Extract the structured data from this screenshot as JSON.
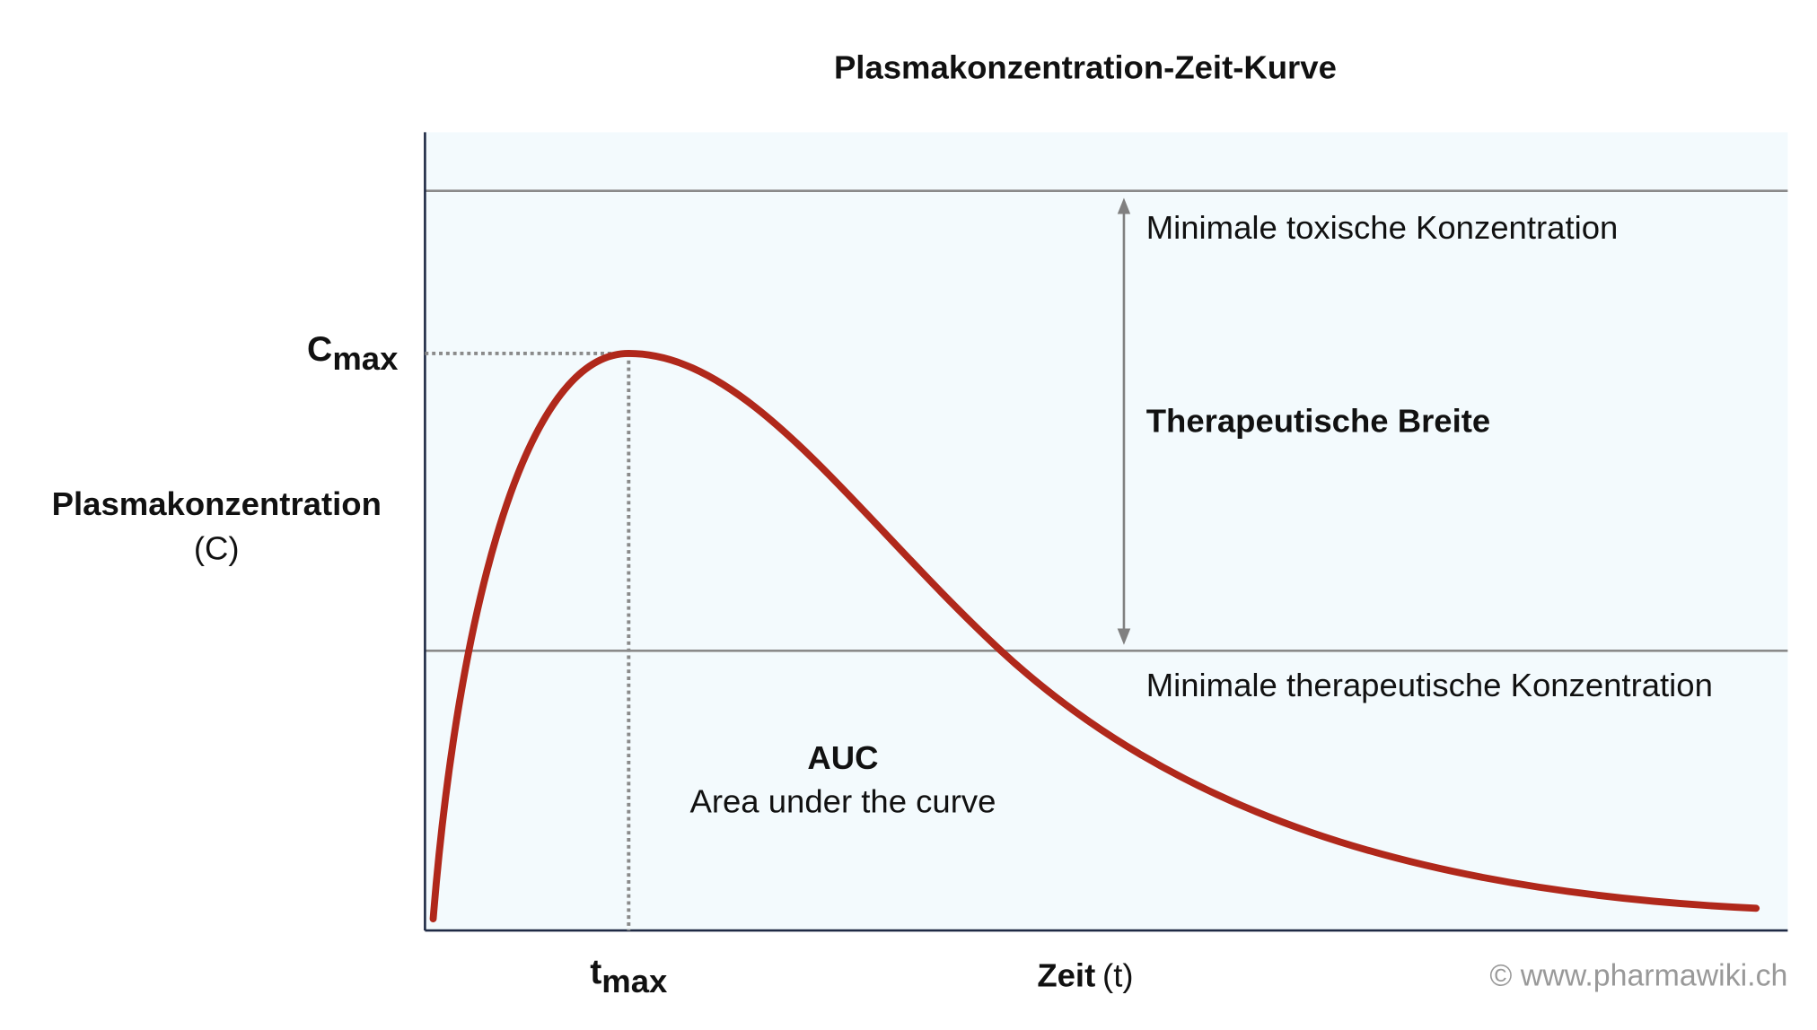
{
  "title": "Plasmakonzentration-Zeit-Kurve",
  "y_axis": {
    "label": "Plasmakonzentration",
    "symbol": "(C)"
  },
  "x_axis": {
    "label": "Zeit",
    "symbol": "(t)"
  },
  "cmax": {
    "symbol": "C",
    "subscript": "max"
  },
  "tmax": {
    "symbol": "t",
    "subscript": "max"
  },
  "annotations": {
    "toxic": "Minimale toxische Konzentration",
    "range": "Therapeutische Breite",
    "therapeutic": "Minimale therapeutische Konzentration",
    "auc_title": "AUC",
    "auc_text": "Area under the curve"
  },
  "copyright": "© www.pharmawiki.ch"
}
